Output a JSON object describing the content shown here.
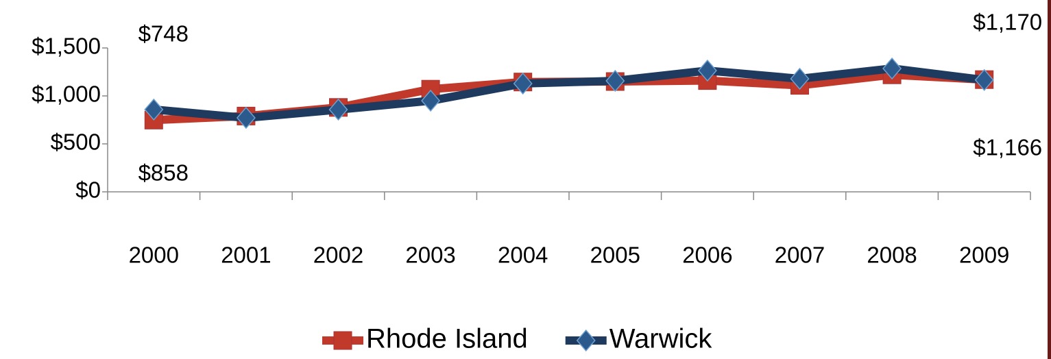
{
  "chart_data": {
    "type": "line",
    "categories": [
      "2000",
      "2001",
      "2002",
      "2003",
      "2004",
      "2005",
      "2006",
      "2007",
      "2008",
      "2009"
    ],
    "series": [
      {
        "name": "Rhode Island",
        "color": "#c0392b",
        "marker": "square",
        "values": [
          748,
          790,
          880,
          1070,
          1145,
          1150,
          1160,
          1110,
          1220,
          1170
        ],
        "value_labels": [
          "$748",
          null,
          null,
          null,
          null,
          null,
          null,
          null,
          null,
          "$1,170"
        ]
      },
      {
        "name": "Warwick",
        "color": "#1f3a5f",
        "marker": "diamond",
        "values": [
          858,
          771,
          857,
          950,
          1129,
          1157,
          1264,
          1179,
          1286,
          1166
        ],
        "value_labels": [
          "$858",
          null,
          null,
          null,
          null,
          null,
          null,
          null,
          null,
          "$1,166"
        ]
      }
    ],
    "ylim": [
      0,
      1500
    ],
    "yticks": [
      {
        "value": 0,
        "label": "$0"
      },
      {
        "value": 500,
        "label": "$500"
      },
      {
        "value": 1000,
        "label": "$1,000"
      },
      {
        "value": 1500,
        "label": "$1,500"
      }
    ],
    "legend": "bottom"
  }
}
